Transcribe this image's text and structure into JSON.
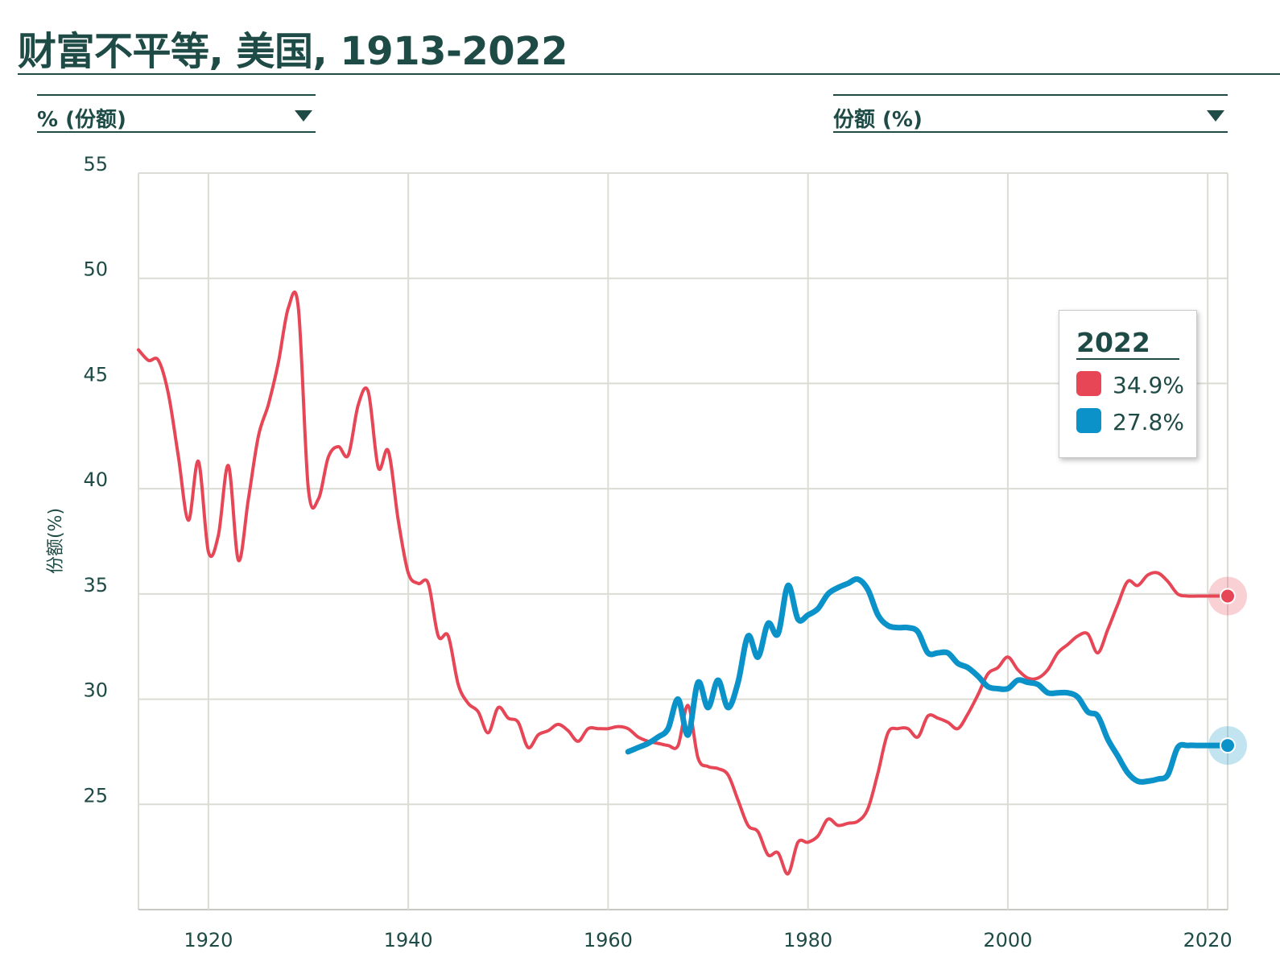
{
  "title": "财富不平等, 美国, 1913-2022",
  "selectors": {
    "left": "% (份额)",
    "right": "份额 (%)"
  },
  "tooltip": {
    "year": "2022",
    "entries": [
      {
        "value": "34.9%",
        "color": "#e64656"
      },
      {
        "value": "27.8%",
        "color": "#0a92c9"
      }
    ]
  },
  "colors": {
    "series_red": "#e64656",
    "series_blue": "#0a92c9",
    "text": "#1f4b47",
    "grid": "#dcdcd4"
  },
  "chart_data": {
    "type": "line",
    "title": "财富不平等, 美国, 1913-2022",
    "xlabel": "",
    "ylabel": "份额(%)",
    "xlim": [
      1913,
      2022
    ],
    "ylim": [
      20,
      55
    ],
    "yticks": [
      25,
      30,
      35,
      40,
      45,
      50,
      55
    ],
    "xticks": [
      1920,
      1940,
      1960,
      1980,
      2000,
      2020
    ],
    "grid": true,
    "series": [
      {
        "name": "red",
        "color": "#e64656",
        "x": [
          1913,
          1914,
          1915,
          1916,
          1917,
          1918,
          1919,
          1920,
          1921,
          1922,
          1923,
          1924,
          1925,
          1926,
          1927,
          1928,
          1929,
          1930,
          1931,
          1932,
          1933,
          1934,
          1935,
          1936,
          1937,
          1938,
          1939,
          1940,
          1941,
          1942,
          1943,
          1944,
          1945,
          1946,
          1947,
          1948,
          1949,
          1950,
          1951,
          1952,
          1953,
          1954,
          1955,
          1956,
          1957,
          1958,
          1959,
          1960,
          1961,
          1962,
          1963,
          1964,
          1965,
          1966,
          1967,
          1968,
          1969,
          1970,
          1971,
          1972,
          1973,
          1974,
          1975,
          1976,
          1977,
          1978,
          1979,
          1980,
          1981,
          1982,
          1983,
          1984,
          1985,
          1986,
          1987,
          1988,
          1989,
          1990,
          1991,
          1992,
          1993,
          1994,
          1995,
          1996,
          1997,
          1998,
          1999,
          2000,
          2001,
          2002,
          2003,
          2004,
          2005,
          2006,
          2007,
          2008,
          2009,
          2010,
          2011,
          2012,
          2013,
          2014,
          2015,
          2016,
          2017,
          2018,
          2019,
          2020,
          2021,
          2022
        ],
        "values": [
          46.6,
          46.1,
          46.1,
          44.5,
          41.5,
          38.5,
          41.3,
          37.0,
          37.8,
          41.1,
          36.6,
          39.5,
          42.5,
          44.0,
          46.0,
          48.6,
          48.6,
          40.0,
          39.5,
          41.5,
          42.0,
          41.6,
          44.0,
          44.6,
          41.0,
          41.8,
          38.5,
          36.0,
          35.5,
          35.5,
          33.0,
          33.0,
          30.7,
          29.8,
          29.4,
          28.4,
          29.6,
          29.1,
          28.9,
          27.7,
          28.3,
          28.5,
          28.8,
          28.5,
          28.0,
          28.6,
          28.6,
          28.6,
          28.7,
          28.6,
          28.2,
          28.0,
          27.9,
          27.8,
          27.8,
          29.7,
          27.2,
          26.8,
          26.7,
          26.4,
          25.2,
          24.0,
          23.7,
          22.6,
          22.7,
          21.7,
          23.2,
          23.2,
          23.5,
          24.3,
          24.0,
          24.1,
          24.2,
          24.8,
          26.5,
          28.4,
          28.6,
          28.6,
          28.2,
          29.2,
          29.1,
          28.9,
          28.6,
          29.3,
          30.2,
          31.2,
          31.5,
          32.0,
          31.4,
          31.0,
          31.0,
          31.4,
          32.2,
          32.6,
          33.0,
          33.1,
          32.2,
          33.3,
          34.5,
          35.6,
          35.4,
          35.9,
          36.0,
          35.6,
          35.0,
          34.9,
          34.9,
          34.9,
          34.9,
          34.9
        ]
      },
      {
        "name": "blue",
        "color": "#0a92c9",
        "x": [
          1962,
          1963,
          1964,
          1965,
          1966,
          1967,
          1968,
          1969,
          1970,
          1971,
          1972,
          1973,
          1974,
          1975,
          1976,
          1977,
          1978,
          1979,
          1980,
          1981,
          1982,
          1983,
          1984,
          1985,
          1986,
          1987,
          1988,
          1989,
          1990,
          1991,
          1992,
          1993,
          1994,
          1995,
          1996,
          1997,
          1998,
          1999,
          2000,
          2001,
          2002,
          2003,
          2004,
          2005,
          2006,
          2007,
          2008,
          2009,
          2010,
          2011,
          2012,
          2013,
          2014,
          2015,
          2016,
          2017,
          2018,
          2019,
          2020,
          2021,
          2022
        ],
        "values": [
          27.5,
          27.7,
          27.9,
          28.2,
          28.6,
          30.0,
          28.3,
          30.8,
          29.6,
          30.9,
          29.6,
          30.8,
          33.0,
          32.0,
          33.6,
          33.1,
          35.4,
          33.8,
          34.0,
          34.3,
          35.0,
          35.3,
          35.5,
          35.7,
          35.2,
          34.0,
          33.5,
          33.4,
          33.4,
          33.2,
          32.2,
          32.2,
          32.2,
          31.7,
          31.5,
          31.1,
          30.6,
          30.5,
          30.5,
          30.9,
          30.8,
          30.7,
          30.3,
          30.3,
          30.3,
          30.1,
          29.4,
          29.2,
          28.1,
          27.3,
          26.5,
          26.1,
          26.1,
          26.2,
          26.4,
          27.7,
          27.8,
          27.8,
          27.8,
          27.8,
          27.8
        ]
      }
    ],
    "end_markers": [
      {
        "series": "red",
        "x": 2022,
        "y": 34.9
      },
      {
        "series": "blue",
        "x": 2022,
        "y": 27.8
      }
    ]
  }
}
